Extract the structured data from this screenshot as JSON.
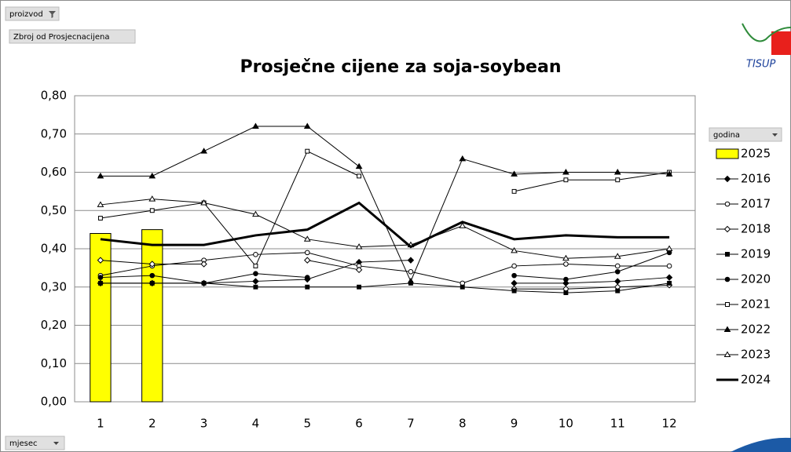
{
  "page": {
    "filter_label": "proizvod",
    "value_field": "Zbroj od Prosjecnacijena",
    "category_field": "mjesec"
  },
  "chart_data": {
    "type": "line",
    "title": "Prosječne cijene za soja-soybean",
    "categories": [
      1,
      2,
      3,
      4,
      5,
      6,
      7,
      8,
      9,
      10,
      11,
      12
    ],
    "ylim": [
      0,
      0.8
    ],
    "yticks": [
      {
        "value": 0,
        "label": "0,00"
      },
      {
        "value": 0.1,
        "label": "0,10"
      },
      {
        "value": 0.2,
        "label": "0,20"
      },
      {
        "value": 0.3,
        "label": "0,30"
      },
      {
        "value": 0.4,
        "label": "0,40"
      },
      {
        "value": 0.5,
        "label": "0,50"
      },
      {
        "value": 0.6,
        "label": "0,60"
      },
      {
        "value": 0.7,
        "label": "0,70"
      },
      {
        "value": 0.8,
        "label": "0,80"
      }
    ],
    "grid": true,
    "legend_title": "godina",
    "legend": "right",
    "series": [
      {
        "name": "2025",
        "type": "bar",
        "color": "#ffff00",
        "values": [
          0.44,
          0.45,
          null,
          null,
          null,
          null,
          null,
          null,
          null,
          null,
          null,
          null
        ]
      },
      {
        "name": "2016",
        "color": "#000000",
        "marker": "diamond",
        "filled": true,
        "values": [
          0.31,
          0.31,
          0.31,
          0.315,
          0.32,
          0.365,
          0.37,
          null,
          0.31,
          0.31,
          0.315,
          0.325
        ]
      },
      {
        "name": "2017",
        "color": "#000000",
        "marker": "circle",
        "filled": false,
        "values": [
          0.33,
          0.355,
          0.37,
          0.385,
          0.39,
          0.355,
          0.34,
          0.31,
          0.355,
          0.36,
          0.355,
          0.355
        ]
      },
      {
        "name": "2018",
        "color": "#000000",
        "marker": "diamond",
        "filled": false,
        "values": [
          0.37,
          0.36,
          0.36,
          null,
          0.37,
          0.345,
          null,
          null,
          0.295,
          0.295,
          0.3,
          0.305
        ]
      },
      {
        "name": "2019",
        "color": "#000000",
        "marker": "square",
        "filled": true,
        "values": [
          0.31,
          0.31,
          0.31,
          0.3,
          0.3,
          0.3,
          0.31,
          0.3,
          0.29,
          0.285,
          0.29,
          0.31
        ]
      },
      {
        "name": "2020",
        "color": "#000000",
        "marker": "circle",
        "filled": true,
        "values": [
          0.325,
          0.33,
          0.31,
          0.335,
          0.325,
          null,
          null,
          null,
          0.33,
          0.32,
          0.34,
          0.39
        ]
      },
      {
        "name": "2021",
        "color": "#000000",
        "marker": "square",
        "filled": false,
        "values": [
          0.48,
          0.5,
          0.52,
          0.355,
          0.655,
          0.59,
          null,
          null,
          0.55,
          0.58,
          0.58,
          0.6
        ]
      },
      {
        "name": "2022",
        "color": "#000000",
        "marker": "triangle",
        "filled": true,
        "values": [
          0.59,
          0.59,
          0.655,
          0.72,
          0.72,
          0.615,
          0.315,
          0.635,
          0.595,
          0.6,
          0.6,
          0.595
        ]
      },
      {
        "name": "2023",
        "color": "#000000",
        "marker": "triangle",
        "filled": false,
        "values": [
          0.515,
          0.53,
          0.52,
          0.49,
          0.425,
          0.405,
          0.41,
          0.46,
          0.395,
          0.375,
          0.38,
          0.4
        ]
      },
      {
        "name": "2024",
        "color": "#000000",
        "marker": "none",
        "emphasis": true,
        "values": [
          0.425,
          0.41,
          0.41,
          0.435,
          0.45,
          0.52,
          0.405,
          0.47,
          0.425,
          0.435,
          0.43,
          0.43
        ]
      }
    ]
  }
}
